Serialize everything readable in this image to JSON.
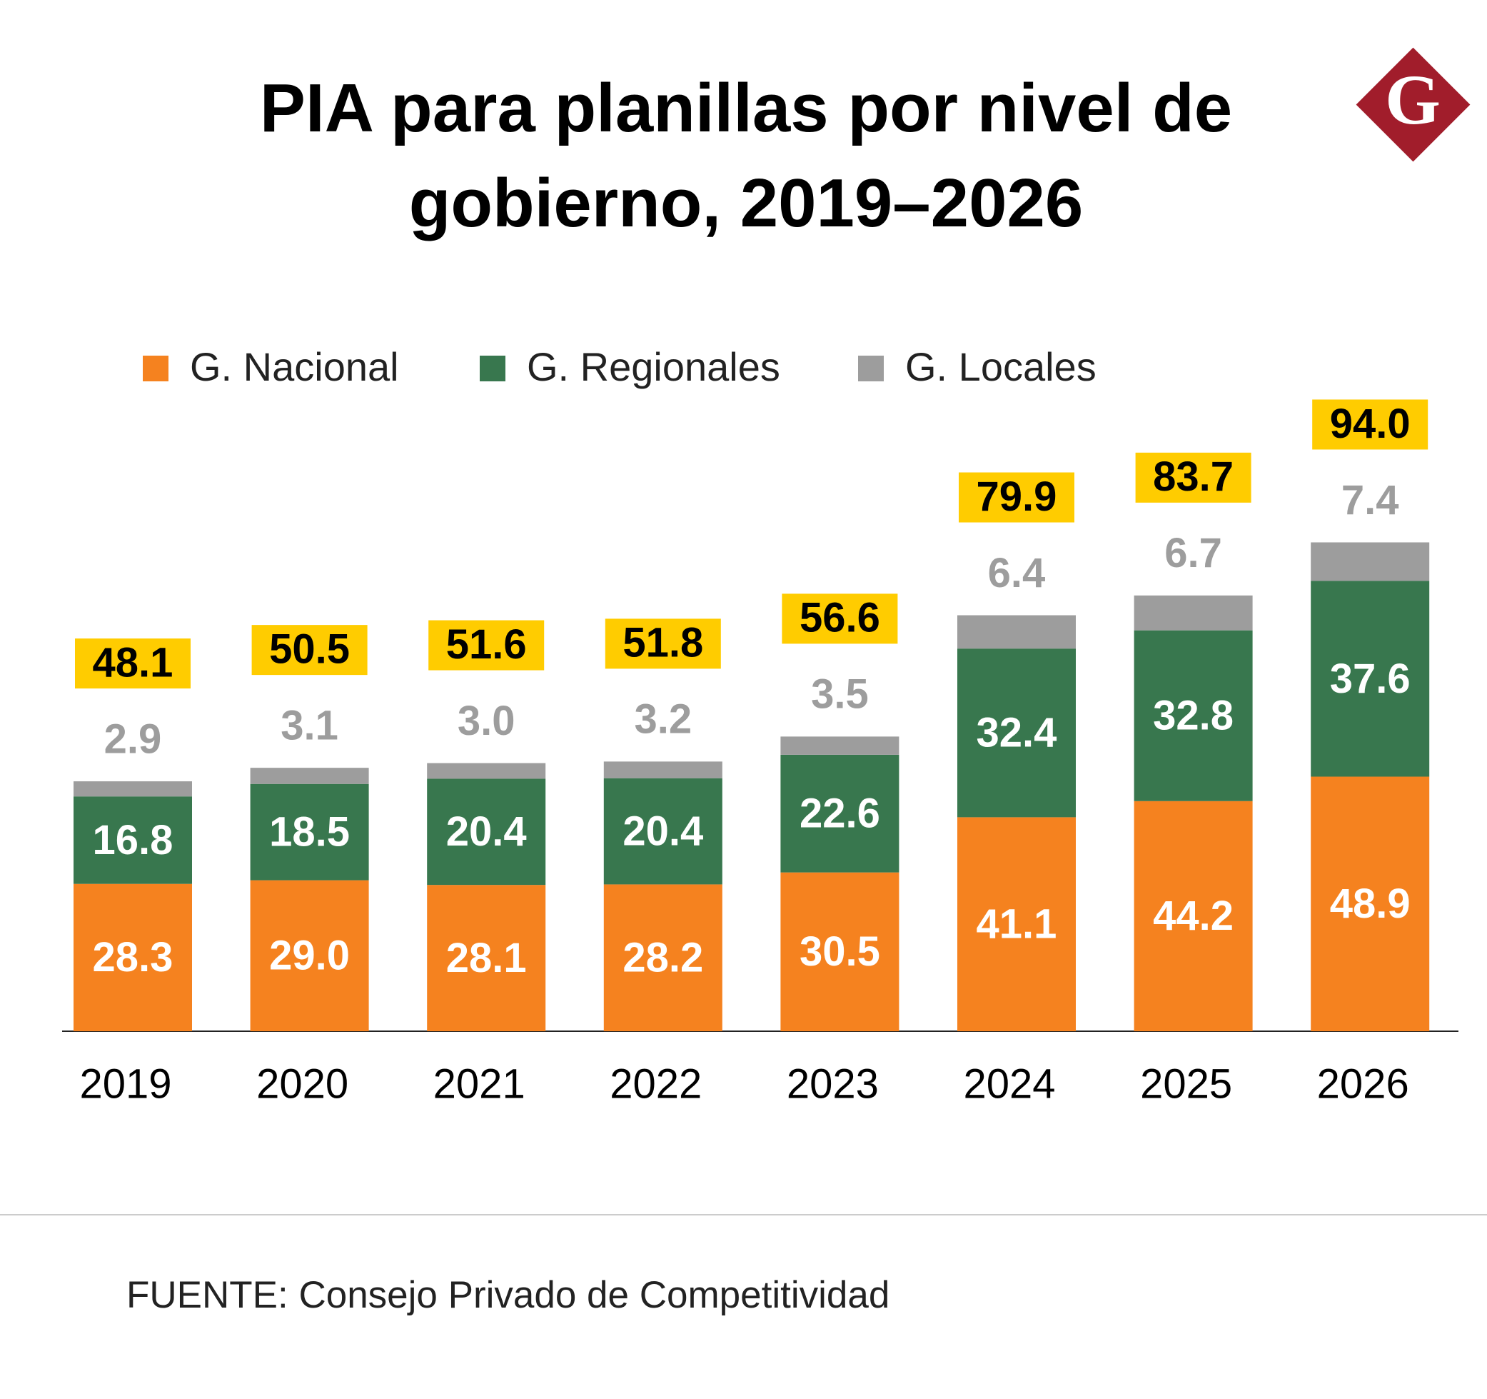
{
  "chart_data": {
    "type": "stacked_bar",
    "title": "PIA para planillas por nivel de gobierno, 2019–2026",
    "logo_text": "G",
    "categories": [
      "2019",
      "2020",
      "2021",
      "2022",
      "2023",
      "2024",
      "2025",
      "2026"
    ],
    "series": [
      {
        "name": "G. Nacional",
        "color": "#f5821f",
        "values": [
          28.3,
          29.0,
          28.1,
          28.2,
          30.5,
          41.1,
          44.2,
          48.9
        ],
        "value_labels": [
          "28.3",
          "29.0",
          "28.1",
          "28.2",
          "30.5",
          "41.1",
          "44.2",
          "48.9"
        ]
      },
      {
        "name": "G. Regionales",
        "color": "#38774e",
        "values": [
          16.8,
          18.5,
          20.4,
          20.4,
          22.6,
          32.4,
          32.8,
          37.6
        ],
        "value_labels": [
          "16.8",
          "18.5",
          "20.4",
          "20.4",
          "22.6",
          "32.4",
          "32.8",
          "37.6"
        ]
      },
      {
        "name": "G. Locales",
        "color": "#9d9d9d",
        "values": [
          2.9,
          3.1,
          3.0,
          3.2,
          3.5,
          6.4,
          6.7,
          7.4
        ],
        "value_labels": [
          "2.9",
          "3.1",
          "3.0",
          "3.2",
          "3.5",
          "6.4",
          "6.7",
          "7.4"
        ]
      }
    ],
    "totals": [
      48.1,
      50.5,
      51.6,
      51.8,
      56.6,
      79.9,
      83.7,
      94.0
    ],
    "total_labels": [
      "48.1",
      "50.5",
      "51.6",
      "51.8",
      "56.6",
      "79.9",
      "83.7",
      "94.0"
    ],
    "total_color": "#ffcc00",
    "source": "FUENTE: Consejo Privado de Competitividad"
  }
}
